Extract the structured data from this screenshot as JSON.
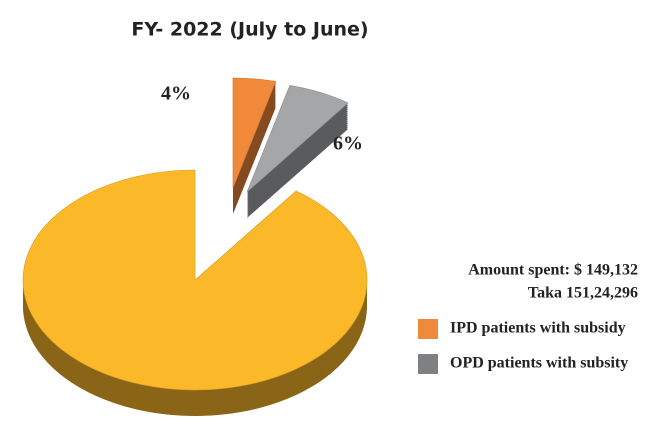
{
  "chart_data": {
    "type": "pie",
    "title": "FY- 2022 (July to June)",
    "categories": [
      "IPD patients with subsidy",
      "OPD patients with subsity",
      null
    ],
    "values": [
      4,
      6,
      90
    ],
    "value_labels": [
      "4%",
      "6%",
      null
    ],
    "colors": [
      "#f0893a",
      "#a4a6a7",
      "#fbb829"
    ],
    "annotations": [
      "Amount spent: $ 149,132",
      "Taka 151,24,296"
    ],
    "legend": "right"
  }
}
